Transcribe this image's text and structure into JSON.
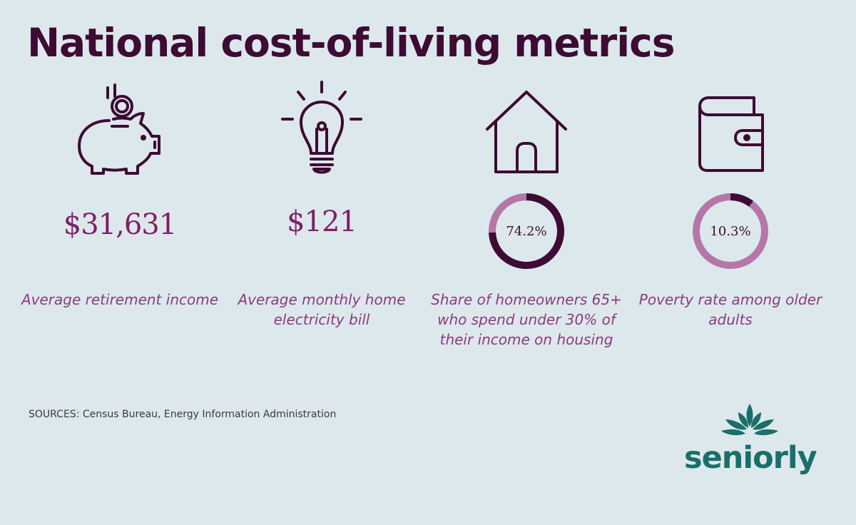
{
  "title": "National cost-of-living metrics",
  "metrics": [
    {
      "icon": "piggy-bank-icon",
      "value": "$31,631",
      "label": "Average retirement income"
    },
    {
      "icon": "light-bulb-icon",
      "value": "$121",
      "label": "Average monthly home electricity bill"
    },
    {
      "icon": "house-icon",
      "value": "74.2%",
      "value_number": 74.2,
      "label": "Share of homeowners 65+ who spend under 30% of their income on housing"
    },
    {
      "icon": "wallet-icon",
      "value": "10.3%",
      "value_number": 10.3,
      "label": "Poverty rate among older adults"
    }
  ],
  "sources": "SOURCES: Census Bureau, Energy Information Administration",
  "brand": {
    "name": "seniorly",
    "color": "#1a6f6a"
  },
  "colors": {
    "background": "#dde8ec",
    "dark": "#3d0b33",
    "accent": "#7e1e68",
    "light": "#b577a8",
    "label": "#8c3b7f"
  }
}
